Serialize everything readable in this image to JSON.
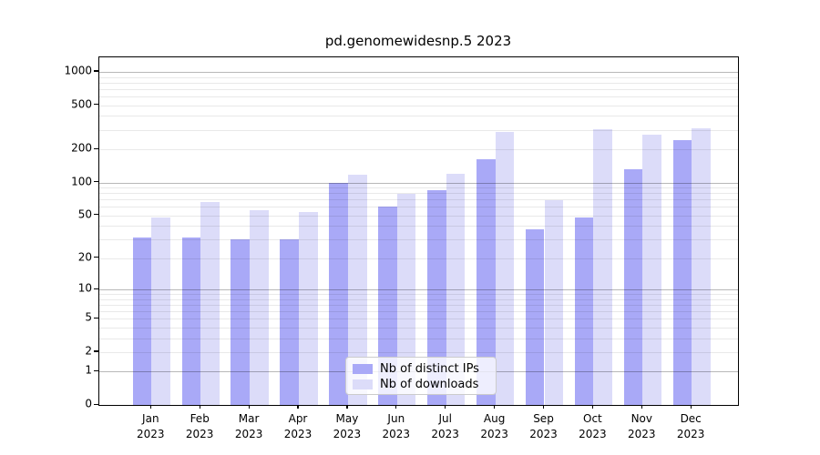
{
  "title": "pd.genomewidesnp.5 2023",
  "legend": {
    "entries": [
      {
        "label": "Nb of distinct IPs",
        "swatch": "dark-purple"
      },
      {
        "label": "Nb of downloads",
        "swatch": "light-lavender"
      }
    ]
  },
  "colors": {
    "bar_distinct_ips": "#a9a9f7",
    "bar_downloads": "#dcdcf9",
    "grid_major": "rgba(0,0,0,0.28)",
    "grid_minor": "rgba(0,0,0,0.085)",
    "spine": "#000000",
    "background": "#ffffff"
  },
  "chart_data": {
    "type": "bar",
    "title": "pd.genomewidesnp.5 2023",
    "categories": [
      "Jan",
      "Feb",
      "Mar",
      "Apr",
      "May",
      "Jun",
      "Jul",
      "Aug",
      "Sep",
      "Oct",
      "Nov",
      "Dec"
    ],
    "category_year": "2023",
    "series": [
      {
        "name": "Nb of distinct IPs",
        "color": "#a9a9f7",
        "values": [
          31,
          31,
          30,
          30,
          100,
          60,
          85,
          163,
          37,
          48,
          131,
          243
        ]
      },
      {
        "name": "Nb of downloads",
        "color": "#dcdcf9",
        "values": [
          48,
          66,
          56,
          54,
          117,
          79,
          119,
          289,
          69,
          306,
          272,
          308
        ]
      }
    ],
    "xlabel": "",
    "ylabel": "",
    "yscale": "log1p",
    "ylim": [
      0,
      1360
    ],
    "y_ticks": [
      0,
      1,
      2,
      5,
      10,
      20,
      50,
      100,
      200,
      500,
      1000
    ],
    "y_major_gridlines": [
      1,
      10,
      100,
      1000
    ],
    "y_minor_gridlines": [
      3,
      4,
      6,
      7,
      8,
      9,
      30,
      40,
      60,
      70,
      80,
      90,
      300,
      400,
      600,
      700,
      800,
      900
    ],
    "grid": true,
    "legend_position": "lower center"
  }
}
